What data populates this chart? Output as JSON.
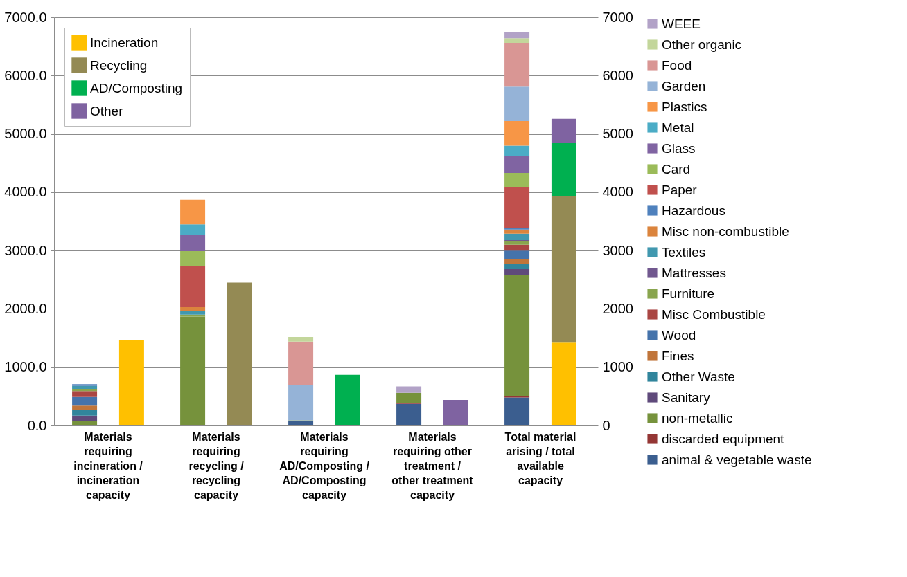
{
  "chart_data": {
    "type": "bar",
    "stacked": true,
    "categories": [
      "Materials requiring incineration / incineration capacity",
      "Materials requiring recycling / recycling capacity",
      "Materials requiring AD/Composting / AD/Composting capacity",
      "Materials requiring other treatment / other treatment capacity",
      "Total material arising / total available capacity"
    ],
    "series": [
      {
        "name": "animal & vegetable waste",
        "color": "#3b5e8f",
        "values": [
          null,
          null,
          70,
          370,
          480
        ]
      },
      {
        "name": "discarded equipment",
        "color": "#943634",
        "values": [
          null,
          null,
          null,
          10,
          20
        ]
      },
      {
        "name": "non-metallic",
        "color": "#76923c",
        "values": [
          70,
          1870,
          20,
          180,
          2080
        ]
      },
      {
        "name": "Sanitary",
        "color": "#5f4a7b",
        "values": [
          100,
          null,
          null,
          null,
          100
        ]
      },
      {
        "name": "Other Waste",
        "color": "#31859c",
        "values": [
          90,
          null,
          null,
          null,
          90
        ]
      },
      {
        "name": "Fines",
        "color": "#c0753a",
        "values": [
          80,
          null,
          null,
          null,
          80
        ]
      },
      {
        "name": "Wood",
        "color": "#4573ab",
        "values": [
          150,
          null,
          null,
          null,
          150
        ]
      },
      {
        "name": "Misc Combustible",
        "color": "#aa4643",
        "values": [
          100,
          null,
          null,
          null,
          100
        ]
      },
      {
        "name": "Furniture",
        "color": "#89a54e",
        "values": [
          40,
          30,
          null,
          null,
          60
        ]
      },
      {
        "name": "Mattresses",
        "color": "#71588f",
        "values": [
          null,
          null,
          null,
          null,
          20
        ]
      },
      {
        "name": "Textiles",
        "color": "#4198af",
        "values": [
          50,
          60,
          null,
          null,
          110
        ]
      },
      {
        "name": "Misc non-combustible",
        "color": "#db843d",
        "values": [
          null,
          70,
          null,
          null,
          70
        ]
      },
      {
        "name": "Hazardous",
        "color": "#4f81bd",
        "values": [
          30,
          null,
          null,
          null,
          30
        ]
      },
      {
        "name": "Paper",
        "color": "#c0504d",
        "values": [
          null,
          700,
          null,
          null,
          690
        ]
      },
      {
        "name": "Card",
        "color": "#9bbb59",
        "values": [
          null,
          260,
          null,
          null,
          250
        ]
      },
      {
        "name": "Glass",
        "color": "#8064a2",
        "values": [
          null,
          280,
          null,
          null,
          290
        ]
      },
      {
        "name": "Metal",
        "color": "#4bacc6",
        "values": [
          null,
          180,
          null,
          null,
          180
        ]
      },
      {
        "name": "Plastics",
        "color": "#f79646",
        "values": [
          null,
          420,
          null,
          null,
          420
        ]
      },
      {
        "name": "Garden",
        "color": "#95b3d7",
        "values": [
          null,
          null,
          600,
          null,
          590
        ]
      },
      {
        "name": "Food",
        "color": "#d99694",
        "values": [
          null,
          null,
          750,
          null,
          750
        ]
      },
      {
        "name": "Other organic",
        "color": "#c3d69b",
        "values": [
          null,
          null,
          80,
          null,
          80
        ]
      },
      {
        "name": "WEEE",
        "color": "#b2a2c7",
        "values": [
          null,
          null,
          null,
          110,
          110
        ]
      },
      {
        "name": "Incineration",
        "color": "#ffc000",
        "axis": "y2",
        "values": [
          1460,
          null,
          null,
          null,
          1420
        ]
      },
      {
        "name": "Recycling",
        "color": "#948a54",
        "axis": "y2",
        "values": [
          null,
          2450,
          null,
          null,
          2520
        ]
      },
      {
        "name": "AD/Composting",
        "color": "#00b050",
        "axis": "y2",
        "values": [
          null,
          null,
          870,
          null,
          910
        ]
      },
      {
        "name": "Other",
        "color": "#7f63a1",
        "axis": "y2",
        "values": [
          null,
          null,
          null,
          440,
          410
        ]
      }
    ],
    "ylim": [
      0,
      7000
    ],
    "yticks": [
      {
        "value": 0,
        "label": "0.0"
      },
      {
        "value": 1000,
        "label": "1000.0"
      },
      {
        "value": 2000,
        "label": "2000.0"
      },
      {
        "value": 3000,
        "label": "3000.0"
      },
      {
        "value": 4000,
        "label": "4000.0"
      },
      {
        "value": 5000,
        "label": "5000.0"
      },
      {
        "value": 6000,
        "label": "6000.0"
      },
      {
        "value": 7000,
        "label": "7000.0"
      }
    ],
    "y2lim": [
      0,
      7000
    ],
    "y2ticks": [
      0,
      1000,
      2000,
      3000,
      4000,
      5000,
      6000,
      7000
    ],
    "grid": "y",
    "legend": "right"
  }
}
